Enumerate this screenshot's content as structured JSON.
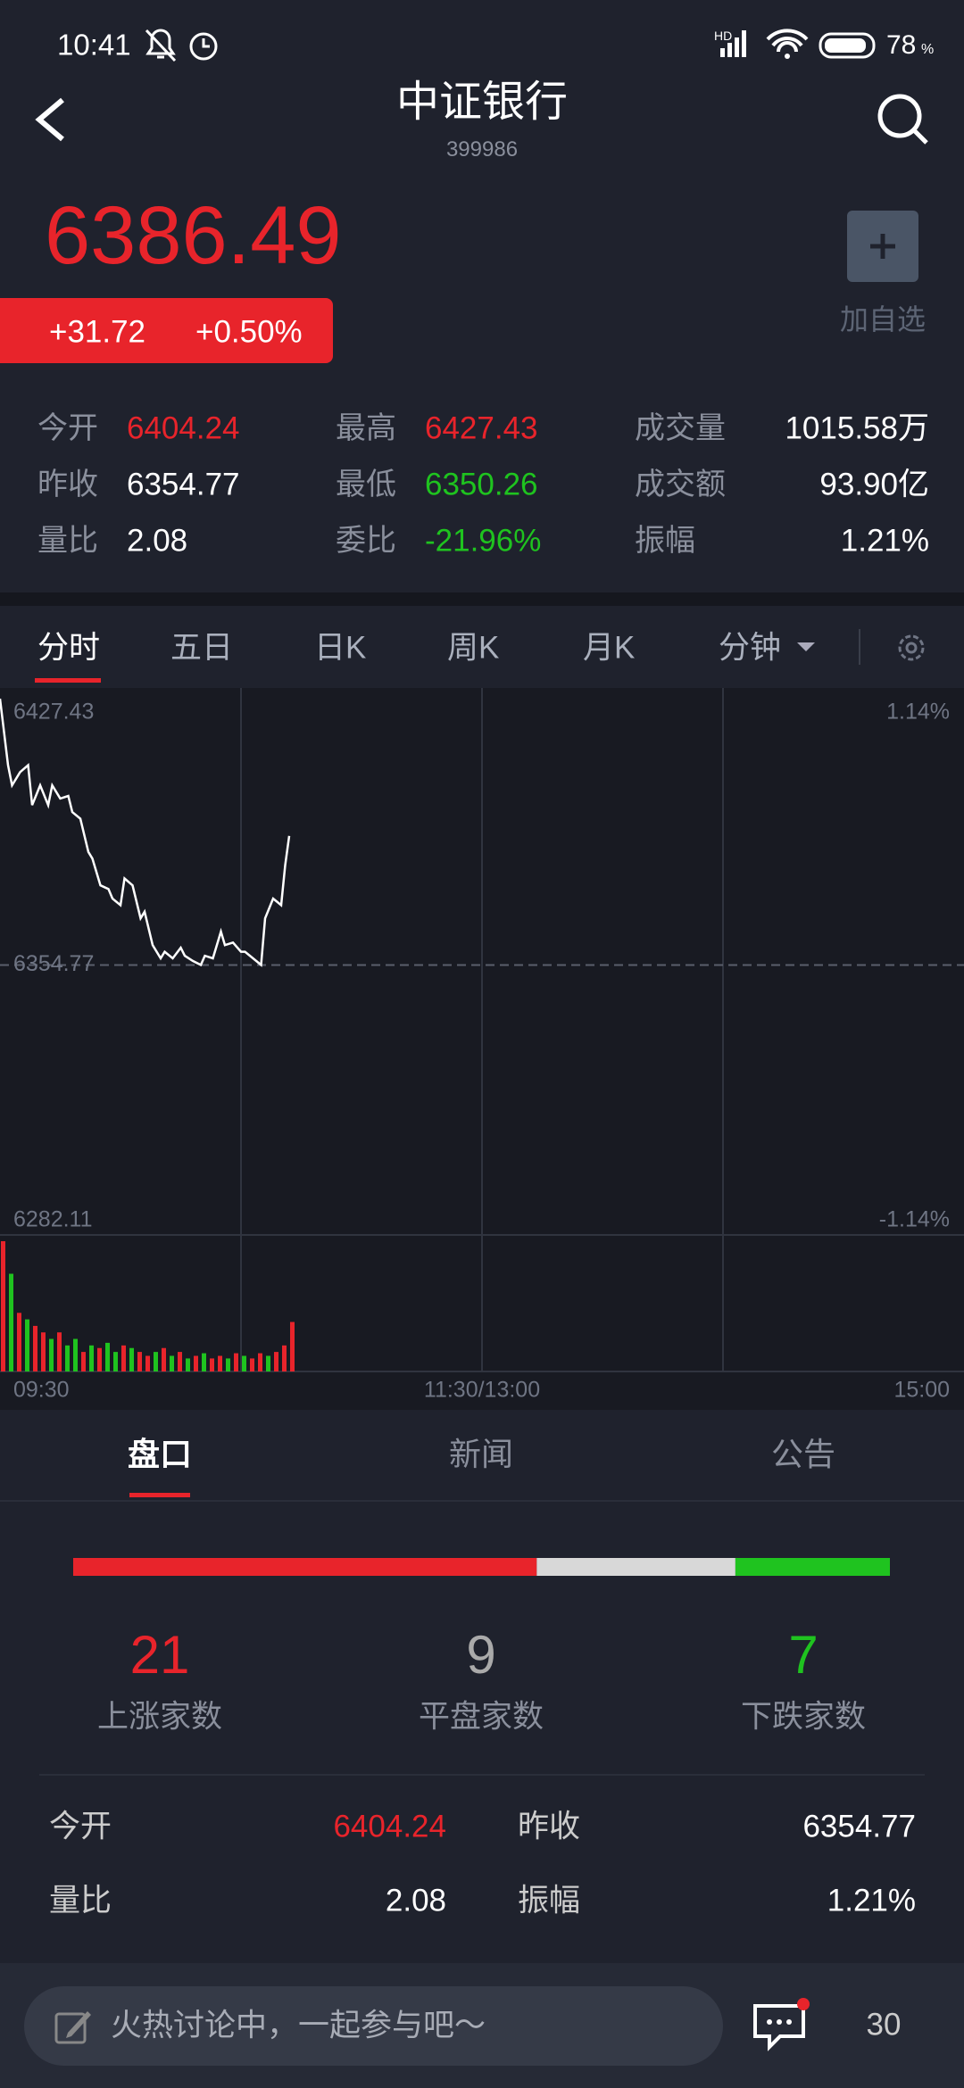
{
  "status": {
    "time": "10:41",
    "network": "HD",
    "battery": "78",
    "battery_unit": "%"
  },
  "header": {
    "title": "中证银行",
    "code": "399986"
  },
  "quote": {
    "price": "6386.49",
    "change": "+31.72",
    "change_pct": "+0.50%",
    "watch_label": "加自选"
  },
  "stats": [
    {
      "label": "今开",
      "value": "6404.24"
    },
    {
      "label": "最高",
      "value": "6427.43"
    },
    {
      "label": "成交量",
      "value": "1015.58万"
    },
    {
      "label": "昨收",
      "value": "6354.77"
    },
    {
      "label": "最低",
      "value": "6350.26"
    },
    {
      "label": "成交额",
      "value": "93.90亿"
    },
    {
      "label": "量比",
      "value": "2.08"
    },
    {
      "label": "委比",
      "value": "-21.96%"
    },
    {
      "label": "振幅",
      "value": "1.21%"
    }
  ],
  "chart_tabs": [
    "分时",
    "五日",
    "日K",
    "周K",
    "月K",
    "分钟"
  ],
  "intraday": {
    "type": "line",
    "ylim": [
      6282.11,
      6427.43
    ],
    "yticks": [
      6282.11,
      6354.77,
      6427.43
    ],
    "y2lim": [
      -1.14,
      1.14
    ],
    "y2ticks": [
      {
        "value": -1.14,
        "label": "-1.14%"
      },
      {
        "value": 1.14,
        "label": "1.14%"
      }
    ],
    "xlim": [
      0,
      240
    ],
    "xticks": [
      {
        "value": 0,
        "label": "09:30"
      },
      {
        "value": 120,
        "label": "11:30/13:00"
      },
      {
        "value": 240,
        "label": "15:00"
      }
    ],
    "xgrid": [
      60,
      120,
      180
    ],
    "reference": 6354.77,
    "x": [
      0,
      2,
      3,
      5,
      7,
      8,
      10,
      12,
      13,
      15,
      17,
      18,
      20,
      22,
      23,
      25,
      27,
      28,
      30,
      31,
      33,
      35,
      36,
      38,
      40,
      41,
      43,
      45,
      46,
      48,
      50,
      51,
      53,
      55,
      56,
      58,
      60,
      61,
      63,
      65,
      66,
      68,
      70,
      71,
      72
    ],
    "values": [
      6427.43,
      6409.3,
      6403.8,
      6407.4,
      6409.3,
      6398.4,
      6403.8,
      6398.4,
      6403.8,
      6400.2,
      6400.9,
      6396.5,
      6394.7,
      6385.6,
      6383.8,
      6376.5,
      6375.5,
      6372.9,
      6371.1,
      6378.4,
      6376.5,
      6367.5,
      6369.3,
      6360.2,
      6356.6,
      6358.4,
      6356.6,
      6359.5,
      6357.3,
      6355.9,
      6354.8,
      6357.3,
      6356.6,
      6363.9,
      6360.2,
      6360.9,
      6358.4,
      6358.4,
      6356.6,
      6354.8,
      6367.5,
      6372.9,
      6371.1,
      6382.0,
      6390.0
    ],
    "color": "#ffffff",
    "volume": {
      "x": [
        0,
        2,
        4,
        6,
        8,
        10,
        12,
        14,
        16,
        18,
        20,
        22,
        24,
        26,
        28,
        30,
        32,
        34,
        36,
        38,
        40,
        42,
        44,
        46,
        48,
        50,
        52,
        54,
        56,
        58,
        60,
        62,
        64,
        66,
        68,
        70,
        72
      ],
      "values": [
        100,
        75,
        45,
        40,
        35,
        30,
        25,
        30,
        20,
        25,
        15,
        20,
        18,
        22,
        15,
        20,
        18,
        15,
        12,
        15,
        18,
        12,
        15,
        10,
        12,
        14,
        10,
        12,
        10,
        14,
        12,
        10,
        14,
        12,
        15,
        20,
        38
      ],
      "colors": [
        "#e8242b",
        "#1fc31f",
        "#e8242b",
        "#1fc31f",
        "#e8242b",
        "#e8242b",
        "#1fc31f",
        "#e8242b",
        "#1fc31f",
        "#1fc31f",
        "#e8242b",
        "#1fc31f",
        "#e8242b",
        "#1fc31f",
        "#1fc31f",
        "#e8242b",
        "#1fc31f",
        "#e8242b",
        "#e8242b",
        "#1fc31f",
        "#e8242b",
        "#1fc31f",
        "#e8242b",
        "#1fc31f",
        "#e8242b",
        "#1fc31f",
        "#e8242b",
        "#e8242b",
        "#1fc31f",
        "#e8242b",
        "#1fc31f",
        "#e8242b",
        "#e8242b",
        "#1fc31f",
        "#e8242b",
        "#e8242b",
        "#e8242b"
      ]
    }
  },
  "panel_tabs": [
    "盘口",
    "新闻",
    "公告"
  ],
  "breadth": {
    "up": 21,
    "flat": 9,
    "down": 7,
    "up_label": "上涨家数",
    "flat_label": "平盘家数",
    "down_label": "下跌家数"
  },
  "table": {
    "rows": [
      [
        "今开",
        "6404.24",
        "昨收",
        "6354.77"
      ],
      [
        "量比",
        "2.08",
        "振幅",
        "1.21%"
      ]
    ]
  },
  "footer": {
    "placeholder": "火热讨论中，一起参与吧～",
    "comments": "30"
  }
}
